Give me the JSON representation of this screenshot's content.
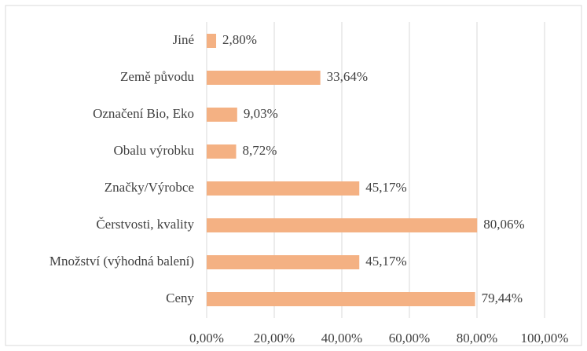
{
  "chart_data": {
    "type": "bar",
    "orientation": "horizontal",
    "categories": [
      "Jiné",
      "Země původu",
      "Označení Bio, Eko",
      "Obalu výrobku",
      "Značky/Výrobce",
      "Čerstvosti, kvality",
      "Množství (výhodná balení)",
      "Ceny"
    ],
    "values": [
      2.8,
      33.64,
      9.03,
      8.72,
      45.17,
      80.06,
      45.17,
      79.44
    ],
    "value_labels": [
      "2,80%",
      "33,64%",
      "9,03%",
      "8,72%",
      "45,17%",
      "80,06%",
      "45,17%",
      "79,44%"
    ],
    "color": "#f4b183",
    "xlim": [
      0,
      100
    ],
    "xticks": [
      {
        "value": 0,
        "label": "0,00%"
      },
      {
        "value": 20,
        "label": "20,00%"
      },
      {
        "value": 40,
        "label": "40,00%"
      },
      {
        "value": 60,
        "label": "60,00%"
      },
      {
        "value": 80,
        "label": "80,00%"
      },
      {
        "value": 100,
        "label": "100,00%"
      }
    ],
    "grid": true
  }
}
